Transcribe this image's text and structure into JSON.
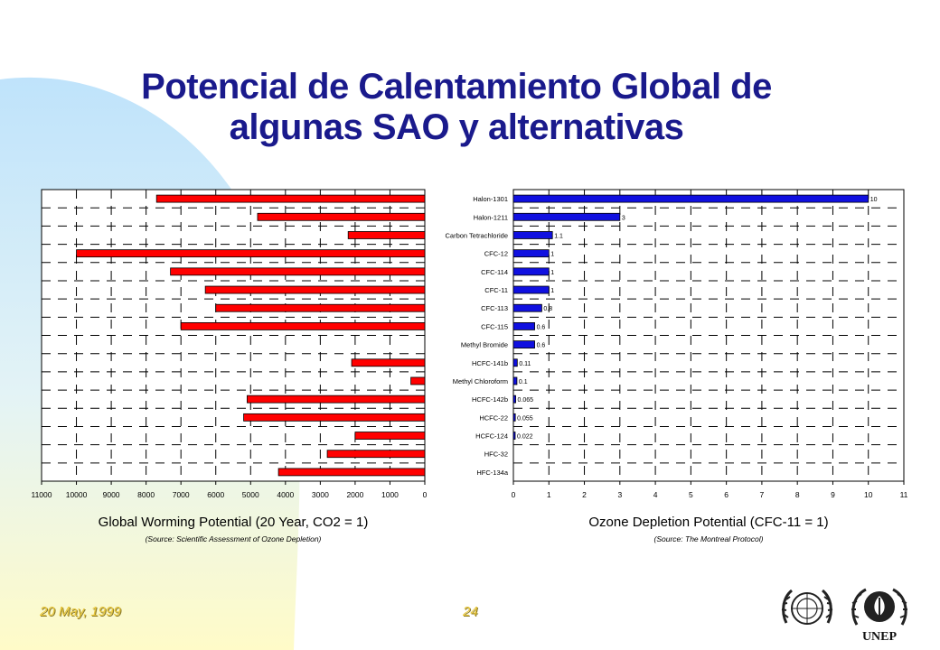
{
  "slide": {
    "title_line1": "Potencial de Calentamiento Global de",
    "title_line2": "algunas SAO y alternativas",
    "footer_date": "20 May, 1999",
    "page_number": "24",
    "unep_text": "UNEP",
    "colors": {
      "title": "#1a1a8c",
      "background_blob": "#c8e6f8",
      "background_blob_yellow": "#ffffcc",
      "footer_text": "#e8c63a",
      "gwp_bar": "#ff0000",
      "odp_bar": "#1010e0"
    }
  },
  "chart_data": [
    {
      "type": "bar",
      "orientation": "horizontal",
      "reversed_x": true,
      "xlabel": "Global Worming Potential (20 Year, CO2 = 1)",
      "source": "(Source: Scientific Assessment of Ozone Depletion)",
      "xlim": [
        0,
        11000
      ],
      "xticks": [
        11000,
        10000,
        9000,
        8000,
        7000,
        6000,
        5000,
        4000,
        3000,
        2000,
        1000,
        0
      ],
      "grid": true,
      "categories": [
        "Halon-1301",
        "Halon-1211",
        "Carbon Tetrachloride",
        "CFC-12",
        "CFC-114",
        "CFC-11",
        "CFC-113",
        "CFC-115",
        "Methyl Bromide",
        "HCFC-141b",
        "Methyl Chloroform",
        "HCFC-142b",
        "HCFC-22",
        "HCFC-124",
        "HFC-32",
        "HFC-134a"
      ],
      "values": [
        7700,
        4800,
        2200,
        10000,
        7300,
        6300,
        6000,
        7000,
        null,
        2100,
        400,
        5100,
        5200,
        2000,
        2800,
        4200
      ],
      "color": "#ff0000"
    },
    {
      "type": "bar",
      "orientation": "horizontal",
      "xlabel": "Ozone Depletion Potential (CFC-11 = 1)",
      "source": "(Source: The Montreal Protocol)",
      "xlim": [
        0,
        11
      ],
      "xticks": [
        0,
        1,
        2,
        3,
        4,
        5,
        6,
        7,
        8,
        9,
        10,
        11
      ],
      "grid": true,
      "categories": [
        "Halon-1301",
        "Halon-1211",
        "Carbon Tetrachloride",
        "CFC-12",
        "CFC-114",
        "CFC-11",
        "CFC-113",
        "CFC-115",
        "Methyl Bromide",
        "HCFC-141b",
        "Methyl Chloroform",
        "HCFC-142b",
        "HCFC-22",
        "HCFC-124",
        "HFC-32",
        "HFC-134a"
      ],
      "values": [
        10,
        3,
        1.1,
        1,
        1,
        1,
        0.8,
        0.6,
        0.6,
        0.11,
        0.1,
        0.065,
        0.055,
        0.022,
        0,
        0
      ],
      "labels": [
        "10",
        "3",
        "1.1",
        "1",
        "1",
        "1",
        "0.8",
        "0.6",
        "0.6",
        "0.11",
        "0.1",
        "0.065",
        "0.055",
        "0.022",
        "",
        ""
      ],
      "color": "#1010e0"
    }
  ]
}
